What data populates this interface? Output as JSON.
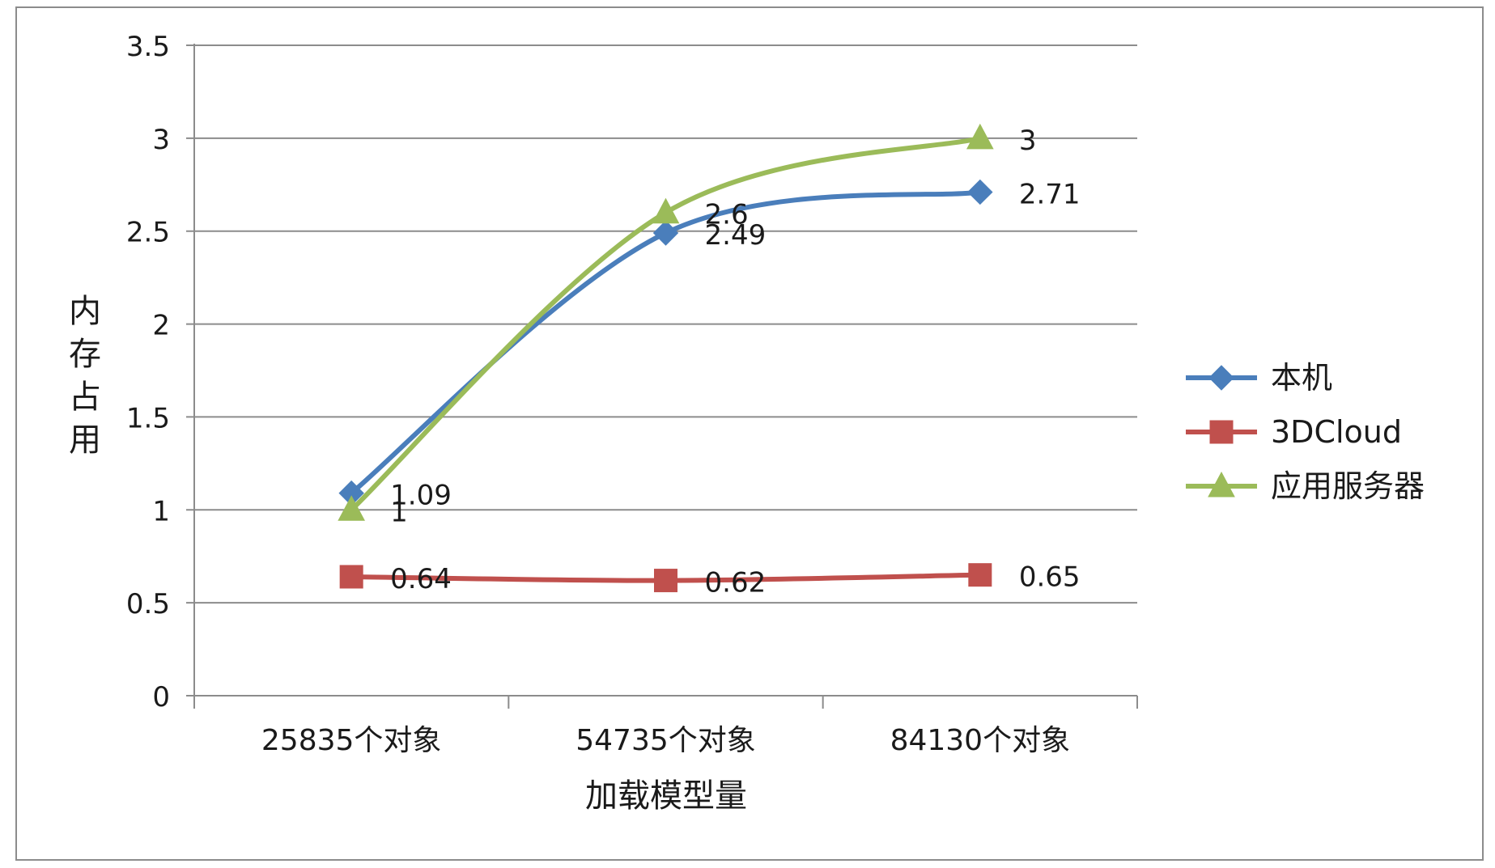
{
  "chart_data": {
    "type": "line",
    "categories": [
      "25835个对象",
      "54735个对象",
      "84130个对象"
    ],
    "series": [
      {
        "name": "本机",
        "values": [
          1.09,
          2.49,
          2.71
        ],
        "color": "#4A7EBB",
        "marker": "diamond"
      },
      {
        "name": "3DCloud",
        "values": [
          0.64,
          0.62,
          0.65
        ],
        "color": "#C0504D",
        "marker": "square"
      },
      {
        "name": "应用服务器",
        "values": [
          1,
          2.6,
          3
        ],
        "color": "#9BBB59",
        "marker": "triangle"
      }
    ],
    "xlabel": "加载模型量",
    "ylabel": "内存占用",
    "ylim": [
      0,
      3.5
    ],
    "yticks": [
      "0",
      "0.5",
      "1",
      "1.5",
      "2",
      "2.5",
      "3",
      "3.5"
    ],
    "grid": true,
    "legend": "right",
    "smooth": true,
    "data_labels": true
  }
}
